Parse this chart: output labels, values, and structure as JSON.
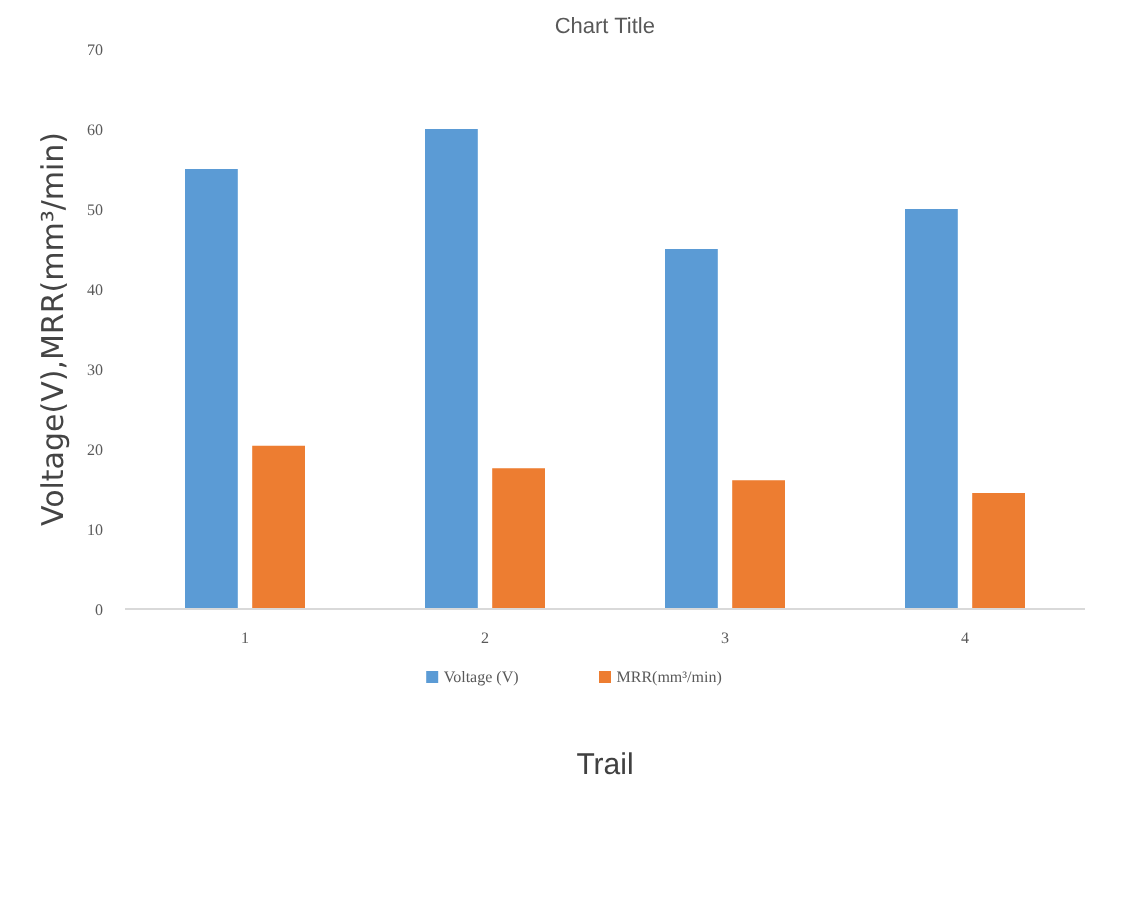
{
  "chart_data": {
    "type": "bar",
    "title": "Chart Title",
    "xlabel": "Trail",
    "ylabel": "Voltage(V),MRR(mm³/min)",
    "categories": [
      "1",
      "2",
      "3",
      "4"
    ],
    "series": [
      {
        "name": "Voltage (V)",
        "color": "#5b9bd5",
        "values": [
          55,
          60,
          45,
          50
        ]
      },
      {
        "name": "MRR(mm³/min)",
        "color": "#ed7d31",
        "values": [
          20.4,
          17.6,
          16.1,
          14.5
        ]
      }
    ],
    "ylim": [
      0,
      70
    ],
    "yticks": [
      0,
      10,
      20,
      30,
      40,
      50,
      60,
      70
    ],
    "grid": false,
    "legend": "bottom"
  }
}
